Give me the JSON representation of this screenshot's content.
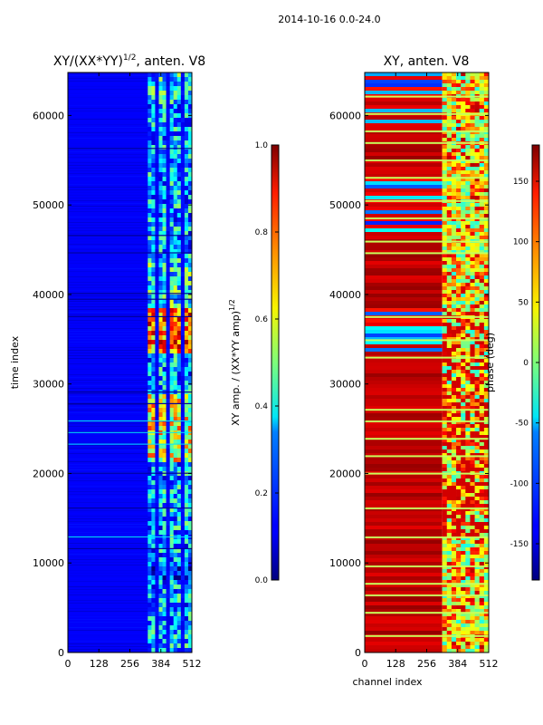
{
  "figure": {
    "suptitle": "2014-10-16 0.0-24.0"
  },
  "chart_data": [
    {
      "type": "heatmap",
      "title": "XY/(XX*YY)^1/2, anten. V8",
      "title_main": "XY/(XX*YY)",
      "title_exp": "1/2",
      "title_tail": ", anten. V8",
      "xlabel": "",
      "ylabel": "time index",
      "xlim": [
        0,
        512
      ],
      "ylim": [
        0,
        64800
      ],
      "x_ticks": [
        0,
        128,
        256,
        384,
        512
      ],
      "y_ticks": [
        0,
        10000,
        20000,
        30000,
        40000,
        50000,
        60000
      ],
      "channel_block_start": 330,
      "colorbar": {
        "label": "XY amp. / (XX*YY amp)^1/2",
        "label_main": "XY amp. / (XX*YY amp)",
        "label_exp": "1/2",
        "range": [
          0.0,
          1.0
        ],
        "ticks": [
          "0.0",
          "0.2",
          "0.4",
          "0.6",
          "0.8",
          "1.0"
        ],
        "colormap": "jet"
      }
    },
    {
      "type": "heatmap",
      "title": "XY, anten. V8",
      "xlabel": "channel index",
      "ylabel": "phase (deg)",
      "xlim": [
        0,
        512
      ],
      "ylim": [
        0,
        64800
      ],
      "x_ticks": [
        0,
        128,
        256,
        384,
        512
      ],
      "y_ticks": [
        0,
        10000,
        20000,
        30000,
        40000,
        50000,
        60000
      ],
      "channel_block_start": 320,
      "colorbar": {
        "label": "phase (deg)",
        "range": [
          -180,
          180
        ],
        "ticks": [
          "-150",
          "-100",
          "-50",
          "0",
          "50",
          "100",
          "150"
        ],
        "colormap": "jet"
      }
    }
  ]
}
